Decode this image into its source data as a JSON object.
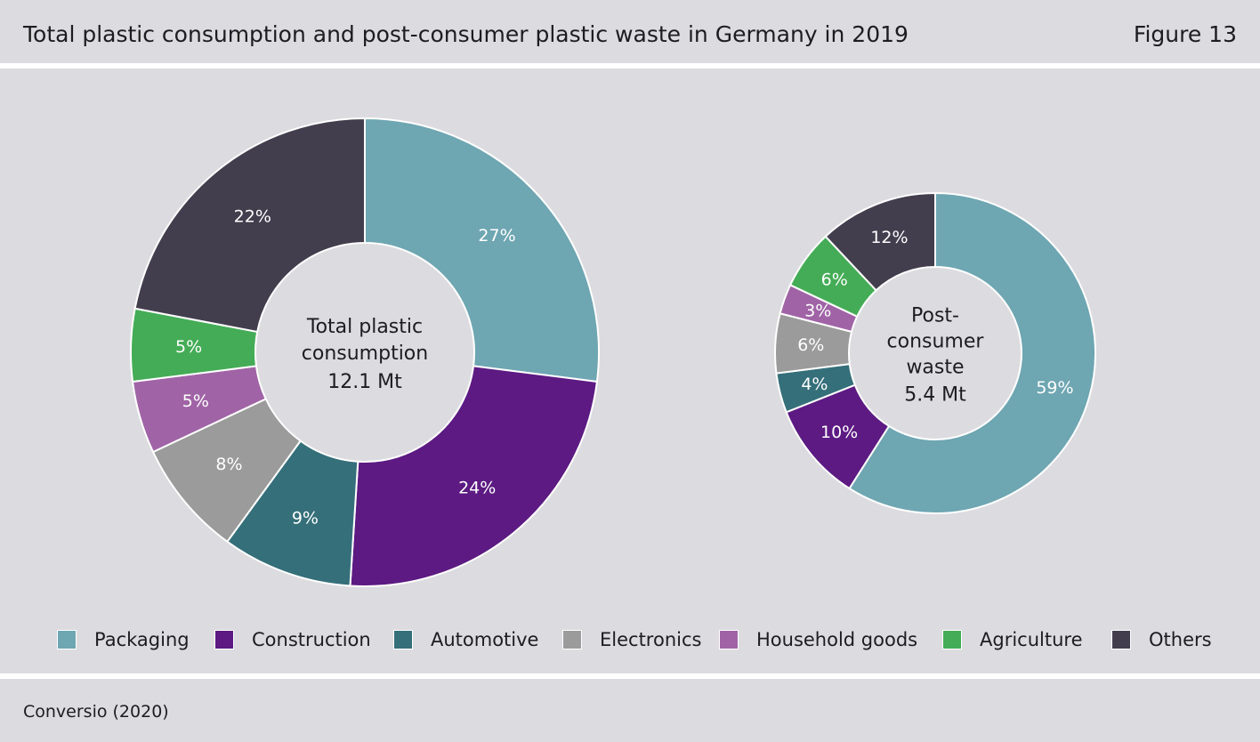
{
  "header": {
    "title": "Total plastic consumption and post-consumer plastic waste in Germany in 2019",
    "figure": "Figure 13"
  },
  "source": "Conversio (2020)",
  "colors": {
    "Packaging": "#6ea6b2",
    "Construction": "#5c1a82",
    "Automotive": "#356f7a",
    "Electronics": "#9b9b9b",
    "Household goods": "#a064a6",
    "Agriculture": "#44ac56",
    "Others": "#433e4e"
  },
  "legend": [
    "Packaging",
    "Construction",
    "Automotive",
    "Electronics",
    "Household goods",
    "Agriculture",
    "Others"
  ],
  "chart_data": [
    {
      "type": "pie",
      "center_label": [
        "Total plastic",
        "consumption",
        "12.1 Mt"
      ],
      "categories": [
        "Packaging",
        "Construction",
        "Automotive",
        "Electronics",
        "Household goods",
        "Agriculture",
        "Others"
      ],
      "values": [
        27,
        24,
        9,
        8,
        5,
        5,
        22
      ],
      "labels": [
        "27%",
        "24%",
        "9%",
        "8%",
        "5%",
        "5%",
        "22%"
      ]
    },
    {
      "type": "pie",
      "center_label": [
        "Post-",
        "consumer",
        "waste",
        "5.4 Mt"
      ],
      "categories": [
        "Packaging",
        "Construction",
        "Automotive",
        "Electronics",
        "Household goods",
        "Agriculture",
        "Others"
      ],
      "values": [
        59,
        10,
        4,
        6,
        3,
        6,
        12
      ],
      "labels": [
        "59%",
        "10%",
        "4%",
        "6%",
        "3%",
        "6%",
        "12%"
      ]
    }
  ]
}
